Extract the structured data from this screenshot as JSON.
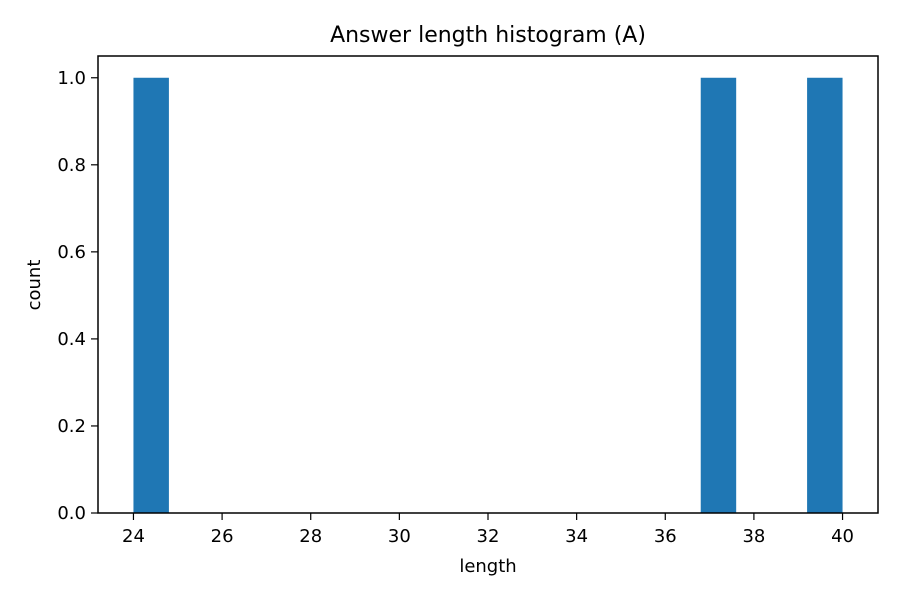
{
  "chart_data": {
    "type": "bar",
    "title": "Answer length histogram (A)",
    "xlabel": "length",
    "ylabel": "count",
    "xlim": [
      23.2,
      40.8
    ],
    "ylim": [
      0,
      1.05
    ],
    "xticks": [
      "24",
      "26",
      "28",
      "30",
      "32",
      "34",
      "36",
      "38",
      "40"
    ],
    "yticks": [
      "0.0",
      "0.2",
      "0.4",
      "0.6",
      "0.8",
      "1.0"
    ],
    "bins": [
      {
        "x0": 24.0,
        "x1": 24.8,
        "count": 1
      },
      {
        "x0": 36.8,
        "x1": 37.6,
        "count": 1
      },
      {
        "x0": 39.2,
        "x1": 40.0,
        "count": 1
      }
    ],
    "bar_color": "#1f77b4",
    "grid": false,
    "legend": "none"
  }
}
